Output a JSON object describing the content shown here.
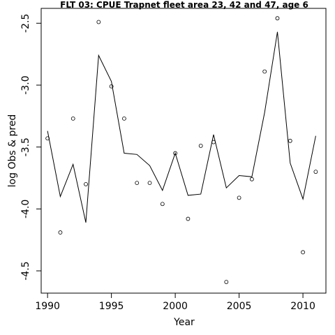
{
  "chart_data": {
    "type": "line",
    "title": "FLT 03: CPUE Trapnet fleet area 23, 42 and 47, age 6",
    "xlabel": "Year",
    "ylabel": "log Obs & pred",
    "xlim": [
      1989.5,
      2011.8
    ],
    "ylim": [
      -4.68,
      -2.38
    ],
    "xticks": [
      1990,
      1995,
      2000,
      2005,
      2010
    ],
    "yticks": [
      -4.5,
      -4.0,
      -3.5,
      -3.0,
      -2.5
    ],
    "xtick_labels": [
      "1990",
      "1995",
      "2000",
      "2005",
      "2010"
    ],
    "ytick_labels": [
      "-4.5",
      "-4.0",
      "-3.5",
      "-3.0",
      "-2.5"
    ],
    "grid": false,
    "series": [
      {
        "kind": "line",
        "x": [
          1990,
          1991,
          1992,
          1993,
          1994,
          1995,
          1996,
          1997,
          1998,
          1999,
          2000,
          2001,
          2002,
          2003,
          2004,
          2005,
          2006,
          2007,
          2008,
          2009,
          2010,
          2011
        ],
        "y": [
          -3.37,
          -3.9,
          -3.64,
          -4.11,
          -2.76,
          -2.97,
          -3.55,
          -3.56,
          -3.65,
          -3.85,
          -3.55,
          -3.89,
          -3.88,
          -3.4,
          -3.83,
          -3.73,
          -3.74,
          -3.22,
          -2.57,
          -3.63,
          -3.92,
          -3.41
        ]
      },
      {
        "kind": "points",
        "x": [
          1990,
          1991,
          1992,
          1993,
          1994,
          1995,
          1996,
          1997,
          1998,
          1999,
          2000,
          2001,
          2002,
          2003,
          2004,
          2005,
          2006,
          2007,
          2008,
          2009,
          2010,
          2011
        ],
        "y": [
          -3.43,
          -4.19,
          -3.27,
          -3.8,
          -2.49,
          -3.01,
          -3.27,
          -3.79,
          -3.79,
          -3.96,
          -3.55,
          -4.08,
          -3.49,
          -3.46,
          -4.59,
          -3.91,
          -3.76,
          -2.89,
          -2.46,
          -3.45,
          -4.35,
          -3.7
        ]
      }
    ]
  }
}
